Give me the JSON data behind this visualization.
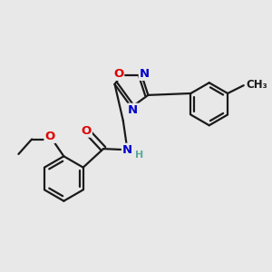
{
  "background_color": "#e8e8e8",
  "bond_color": "#1a1a1a",
  "bond_width": 1.6,
  "atom_colors": {
    "O": "#dd0000",
    "N": "#0000cc",
    "C": "#1a1a1a",
    "H": "#5aaa9a"
  },
  "font_size_atom": 9.5,
  "font_size_small": 8.0,
  "font_size_methyl": 8.5
}
